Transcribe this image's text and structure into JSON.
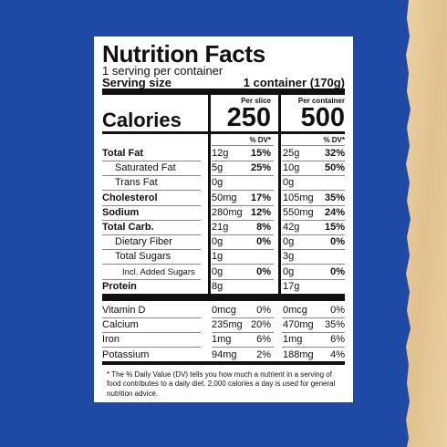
{
  "header": {
    "title": "Nutrition Facts",
    "servings": "1 serving per container",
    "serving_size_label": "Serving size",
    "serving_size": "1 container (170g)"
  },
  "columns": [
    "Per slice",
    "Per container"
  ],
  "calories": {
    "label": "Calories",
    "values": [
      "250",
      "500"
    ]
  },
  "dv_header": [
    "% DV*",
    "% DV*"
  ],
  "table": {
    "rows": [
      [
        "Total Fat",
        "12g",
        "15%",
        "25g",
        "32%"
      ],
      [
        "Saturated Fat",
        "5g",
        "25%",
        "10g",
        "50%"
      ],
      [
        "Trans Fat",
        "0g",
        null,
        "0g",
        null
      ],
      [
        "Cholesterol",
        "50mg",
        "17%",
        "105mg",
        "35%"
      ],
      [
        "Sodium",
        "280mg",
        "12%",
        "550mg",
        "24%"
      ],
      [
        "Total Carb.",
        "21g",
        "8%",
        "42g",
        "15%"
      ],
      [
        "Dietary Fiber",
        "0g",
        "0%",
        "0g",
        "0%"
      ],
      [
        "Total Sugars",
        "1g",
        null,
        "3g",
        null
      ],
      [
        "Incl. Added Sugars",
        "0g",
        "0%",
        "0g",
        "0%"
      ],
      [
        "Protein",
        "8g",
        null,
        "17g",
        null
      ]
    ]
  },
  "vitamins": {
    "rows": [
      [
        "Vitamin D",
        "0mcg",
        "0%",
        "0mcg",
        "0%"
      ],
      [
        "Calcium",
        "235mg",
        "20%",
        "470mg",
        "35%"
      ],
      [
        "Iron",
        "1mg",
        "6%",
        "1mg",
        "6%"
      ],
      [
        "Potassium",
        "94mg",
        "2%",
        "188mg",
        "4%"
      ]
    ]
  },
  "footnote": "* The % Daily Value (DV) tells you how much a nutrient in a serving of food contributes to a daily diet. 2,000 calories a day is used for general nutrition advice."
}
